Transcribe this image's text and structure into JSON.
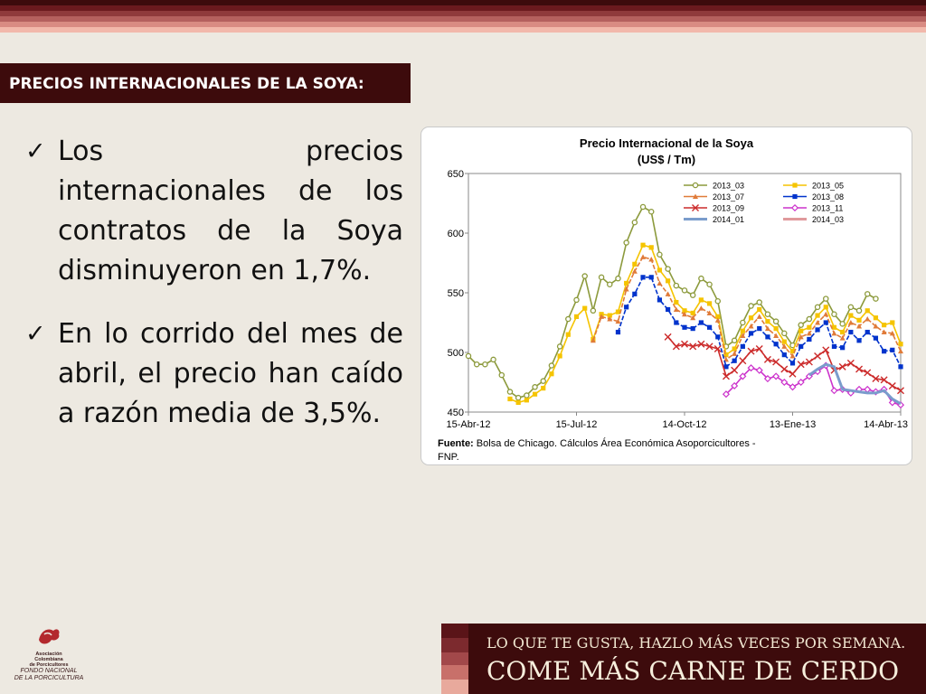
{
  "header": {
    "title": "PRECIOS INTERNACIONALES DE LA SOYA:"
  },
  "bullets": [
    "Los precios internacionales de los contratos de la Soya disminuyeron en 1,7%.",
    "En lo corrido del mes de abril, el precio han caído a razón media de 3,5%."
  ],
  "footer": {
    "slogan_line1": "LO QUE TE GUSTA, HAZLO MÁS VECES POR SEMANA.",
    "slogan_line2": "COME MÁS CARNE DE CERDO"
  },
  "logo": {
    "line1": "Asociación",
    "line2": "Colombiana",
    "line3": "de Porcicultores",
    "line4": "FONDO NACIONAL",
    "line5": "DE LA PORCICULTURA"
  },
  "colors": {
    "title_bg": "#3d0b0c",
    "footer_bg": "#3d0b0c"
  },
  "chart_data": {
    "type": "line",
    "title": "Precio Internacional de la Soya",
    "subtitle": "(US$ / Tm)",
    "source_label": "Fuente:",
    "source_text": "Bolsa de Chicago. Cálculos Área Económica Asoporcicultores - FNP.",
    "ylim": [
      450,
      650
    ],
    "yticks": [
      450,
      500,
      550,
      600,
      650
    ],
    "x_tick_labels": [
      "15-Abr-12",
      "15-Jul-12",
      "14-Oct-12",
      "13-Ene-13",
      "14-Abr-13"
    ],
    "x_weeks": [
      "15-Abr-12",
      "22-Abr-12",
      "29-Abr-12",
      "06-May-12",
      "13-May-12",
      "20-May-12",
      "27-May-12",
      "03-Jun-12",
      "10-Jun-12",
      "17-Jun-12",
      "24-Jun-12",
      "01-Jul-12",
      "08-Jul-12",
      "15-Jul-12",
      "22-Jul-12",
      "29-Jul-12",
      "05-Ago-12",
      "12-Ago-12",
      "19-Ago-12",
      "26-Ago-12",
      "02-Sep-12",
      "09-Sep-12",
      "16-Sep-12",
      "23-Sep-12",
      "30-Sep-12",
      "07-Oct-12",
      "14-Oct-12",
      "21-Oct-12",
      "28-Oct-12",
      "04-Nov-12",
      "11-Nov-12",
      "18-Nov-12",
      "25-Nov-12",
      "02-Dic-12",
      "09-Dic-12",
      "16-Dic-12",
      "23-Dic-12",
      "30-Dic-12",
      "06-Ene-13",
      "13-Ene-13",
      "20-Ene-13",
      "27-Ene-13",
      "03-Feb-13",
      "10-Feb-13",
      "17-Feb-13",
      "24-Feb-13",
      "03-Mar-13",
      "10-Mar-13",
      "17-Mar-13",
      "24-Mar-13",
      "31-Mar-13",
      "07-Abr-13",
      "14-Abr-13"
    ],
    "legend_position": "top-right",
    "series": [
      {
        "name": "2013_03",
        "color": "#8c9a3c",
        "marker": "circle",
        "values": [
          497,
          490,
          490,
          494,
          481,
          467,
          462,
          464,
          471,
          476,
          489,
          505,
          528,
          544,
          564,
          535,
          563,
          557,
          562,
          592,
          609,
          622,
          618,
          582,
          570,
          556,
          552,
          548,
          562,
          557,
          543,
          505,
          510,
          525,
          539,
          542,
          532,
          526,
          516,
          506,
          523,
          528,
          538,
          545,
          532,
          524,
          538,
          535,
          549,
          545,
          null,
          null,
          null
        ]
      },
      {
        "name": "2013_05",
        "color": "#f5c400",
        "marker": "square",
        "values": [
          null,
          null,
          null,
          null,
          null,
          461,
          458,
          460,
          465,
          470,
          482,
          497,
          515,
          530,
          537,
          511,
          532,
          531,
          534,
          558,
          574,
          590,
          588,
          569,
          560,
          542,
          535,
          533,
          544,
          541,
          530,
          498,
          503,
          518,
          529,
          536,
          526,
          520,
          509,
          501,
          518,
          521,
          531,
          538,
          521,
          517,
          531,
          527,
          535,
          529,
          523,
          525,
          507
        ]
      },
      {
        "name": "2013_07",
        "color": "#e07b39",
        "marker": "triangle",
        "values": [
          null,
          null,
          null,
          null,
          null,
          null,
          null,
          null,
          null,
          null,
          null,
          null,
          null,
          null,
          null,
          510,
          530,
          528,
          526,
          553,
          568,
          580,
          578,
          558,
          549,
          536,
          532,
          529,
          537,
          533,
          527,
          494,
          499,
          514,
          522,
          530,
          520,
          514,
          505,
          497,
          513,
          516,
          525,
          532,
          516,
          512,
          525,
          522,
          528,
          522,
          517,
          516,
          501
        ]
      },
      {
        "name": "2013_08",
        "color": "#0033cc",
        "marker": "square",
        "values": [
          null,
          null,
          null,
          null,
          null,
          null,
          null,
          null,
          null,
          null,
          null,
          null,
          null,
          null,
          null,
          null,
          null,
          null,
          517,
          538,
          549,
          563,
          563,
          544,
          536,
          525,
          521,
          520,
          525,
          521,
          513,
          488,
          493,
          505,
          516,
          520,
          513,
          507,
          498,
          491,
          505,
          511,
          519,
          525,
          505,
          504,
          517,
          510,
          517,
          512,
          501,
          502,
          488
        ]
      },
      {
        "name": "2013_09",
        "color": "#cc2b2b",
        "marker": "x",
        "values": [
          null,
          null,
          null,
          null,
          null,
          null,
          null,
          null,
          null,
          null,
          null,
          null,
          null,
          null,
          null,
          null,
          null,
          null,
          null,
          null,
          null,
          null,
          null,
          null,
          513,
          505,
          507,
          505,
          507,
          505,
          503,
          480,
          485,
          493,
          501,
          503,
          494,
          492,
          486,
          482,
          490,
          492,
          497,
          502,
          485,
          488,
          491,
          486,
          483,
          478,
          477,
          472,
          468
        ]
      },
      {
        "name": "2013_11",
        "color": "#cc33cc",
        "marker": "diamond",
        "values": [
          null,
          null,
          null,
          null,
          null,
          null,
          null,
          null,
          null,
          null,
          null,
          null,
          null,
          null,
          null,
          null,
          null,
          null,
          null,
          null,
          null,
          null,
          null,
          null,
          null,
          null,
          null,
          null,
          null,
          null,
          null,
          465,
          472,
          480,
          487,
          485,
          478,
          480,
          475,
          471,
          475,
          480,
          484,
          489,
          468,
          469,
          466,
          469,
          469,
          467,
          469,
          458,
          456
        ]
      },
      {
        "name": "2014_01",
        "color": "#7a9ccc",
        "marker": "none",
        "values": [
          null,
          null,
          null,
          null,
          null,
          null,
          null,
          null,
          null,
          null,
          null,
          null,
          null,
          null,
          null,
          null,
          null,
          null,
          null,
          null,
          null,
          null,
          null,
          null,
          null,
          null,
          null,
          null,
          null,
          null,
          null,
          null,
          null,
          null,
          null,
          null,
          null,
          null,
          null,
          null,
          null,
          481,
          486,
          490,
          488,
          469,
          468,
          467,
          466,
          466,
          468,
          461,
          457
        ]
      },
      {
        "name": "2014_03",
        "color": "#e0999c",
        "marker": "none",
        "values": [
          null,
          null,
          null,
          null,
          null,
          null,
          null,
          null,
          null,
          null,
          null,
          null,
          null,
          null,
          null,
          null,
          null,
          null,
          null,
          null,
          null,
          null,
          null,
          null,
          null,
          null,
          null,
          null,
          null,
          null,
          null,
          null,
          null,
          null,
          null,
          null,
          null,
          null,
          null,
          null,
          null,
          null,
          null,
          null,
          null,
          null,
          null,
          null,
          null,
          null,
          null,
          null,
          null
        ]
      }
    ]
  }
}
